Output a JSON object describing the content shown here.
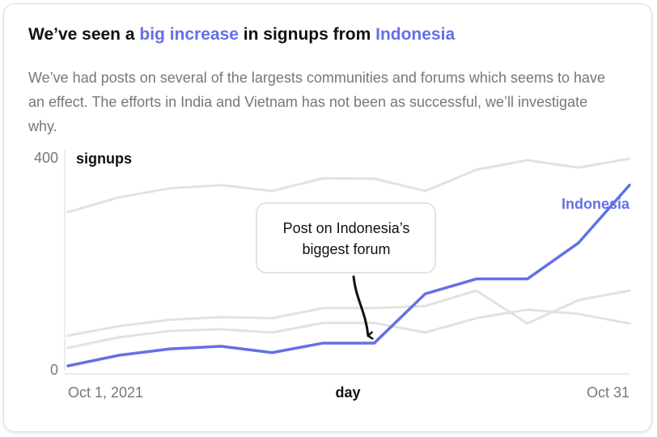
{
  "chart_data": {
    "type": "line",
    "title": [
      {
        "text": "We’ve seen a ",
        "color": "#111111"
      },
      {
        "text": "big increase",
        "color": "#6470e6"
      },
      {
        "text": " in signups from ",
        "color": "#111111"
      },
      {
        "text": "Indonesia",
        "color": "#6470e6"
      }
    ],
    "subtitle": "We’ve had posts on several of the largests communities and forums which seems to have an effect. The efforts in India and Vietnam has not been as successful, we’ll investigate why.",
    "y_label": "signups",
    "x_label": "day",
    "categories": [
      "Oct 1, 2021",
      null,
      null,
      null,
      null,
      null,
      null,
      null,
      null,
      null,
      null,
      "Oct 31"
    ],
    "ylim": [
      0,
      400
    ],
    "yticks": [
      0,
      400
    ],
    "series": [
      {
        "color": "#e2e2e2",
        "values": [
          299,
          327,
          344,
          350,
          339,
          363,
          362,
          339,
          379,
          397,
          383,
          400
        ]
      },
      {
        "color": "#e2e2e2",
        "values": [
          66,
          84,
          96,
          101,
          99,
          118,
          118,
          122,
          151,
          89,
          133,
          151
        ]
      },
      {
        "color": "#e2e2e2",
        "values": [
          43,
          63,
          75,
          78,
          72,
          90,
          90,
          72,
          99,
          115,
          107,
          89
        ]
      },
      {
        "name": "Indonesia",
        "color": "#6470e6",
        "values": [
          9,
          29,
          41,
          46,
          34,
          52,
          52,
          145,
          173,
          173,
          241,
          350
        ]
      }
    ],
    "annotation": [
      "Post on Indonesia’s",
      "biggest forum"
    ]
  }
}
